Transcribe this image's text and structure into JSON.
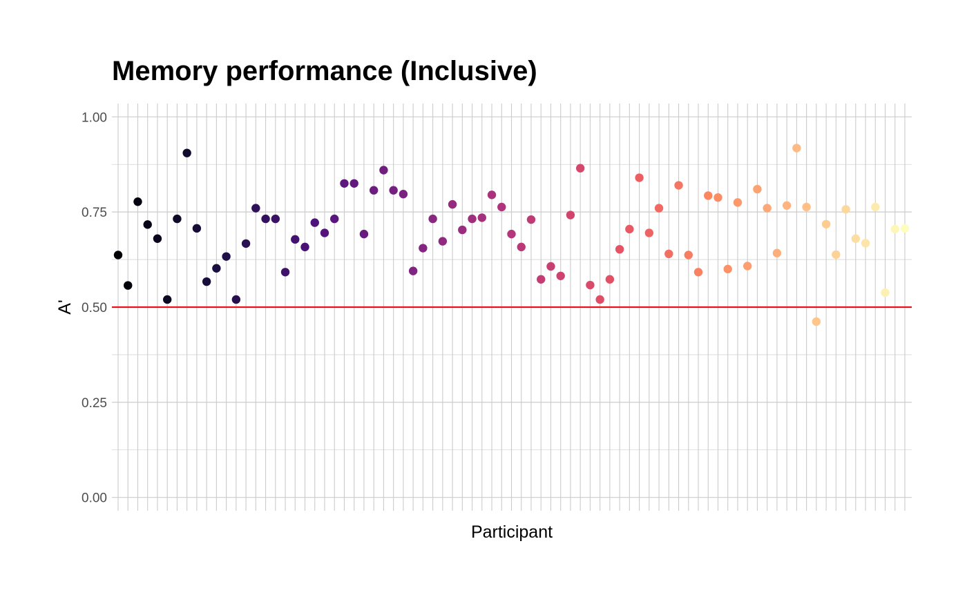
{
  "chart_data": {
    "type": "scatter",
    "title": "Memory performance (Inclusive)",
    "xlabel": "Participant",
    "ylabel": "A'",
    "ylim": [
      -0.035,
      1.035
    ],
    "yticks": [
      0.0,
      0.25,
      0.5,
      0.75,
      1.0
    ],
    "ytick_labels": [
      "0.00",
      "0.25",
      "0.50",
      "0.75",
      "1.00"
    ],
    "x_tick_labels_shown": false,
    "grid": true,
    "legend": "none",
    "color_scale": "magma",
    "reference_line": {
      "y": 0.5,
      "color": "#e8121a"
    },
    "x": [
      1,
      2,
      3,
      4,
      5,
      6,
      7,
      8,
      9,
      10,
      11,
      12,
      13,
      14,
      15,
      16,
      17,
      18,
      19,
      20,
      21,
      22,
      23,
      24,
      25,
      26,
      27,
      28,
      29,
      30,
      31,
      32,
      33,
      34,
      35,
      36,
      37,
      38,
      39,
      40,
      41,
      42,
      43,
      44,
      45,
      46,
      47,
      48,
      49,
      50,
      51,
      52,
      53,
      54,
      55,
      56,
      57,
      58,
      59,
      60,
      61,
      62,
      63,
      64,
      65,
      66,
      67,
      68,
      69,
      70,
      71,
      72,
      73,
      74,
      75,
      76,
      77,
      78,
      79,
      80,
      81
    ],
    "values": [
      0.637,
      0.557,
      0.777,
      0.717,
      0.68,
      0.52,
      0.732,
      0.905,
      0.707,
      0.567,
      0.602,
      0.633,
      0.52,
      0.667,
      0.76,
      0.732,
      0.732,
      0.592,
      0.678,
      0.658,
      0.722,
      0.695,
      0.732,
      0.825,
      0.825,
      0.692,
      0.807,
      0.86,
      0.807,
      0.797,
      0.595,
      0.655,
      0.732,
      0.673,
      0.77,
      0.703,
      0.732,
      0.735,
      0.795,
      0.763,
      0.692,
      0.658,
      0.73,
      0.573,
      0.607,
      0.582,
      0.742,
      0.865,
      0.558,
      0.52,
      0.573,
      0.652,
      0.705,
      0.84,
      0.695,
      0.76,
      0.64,
      0.82,
      0.637,
      0.592,
      0.793,
      0.788,
      0.6,
      0.775,
      0.608,
      0.81,
      0.76,
      0.642,
      0.767,
      0.918,
      0.763,
      0.462,
      0.718,
      0.638,
      0.757,
      0.68,
      0.668,
      0.763,
      0.538,
      0.705,
      0.707
    ]
  }
}
